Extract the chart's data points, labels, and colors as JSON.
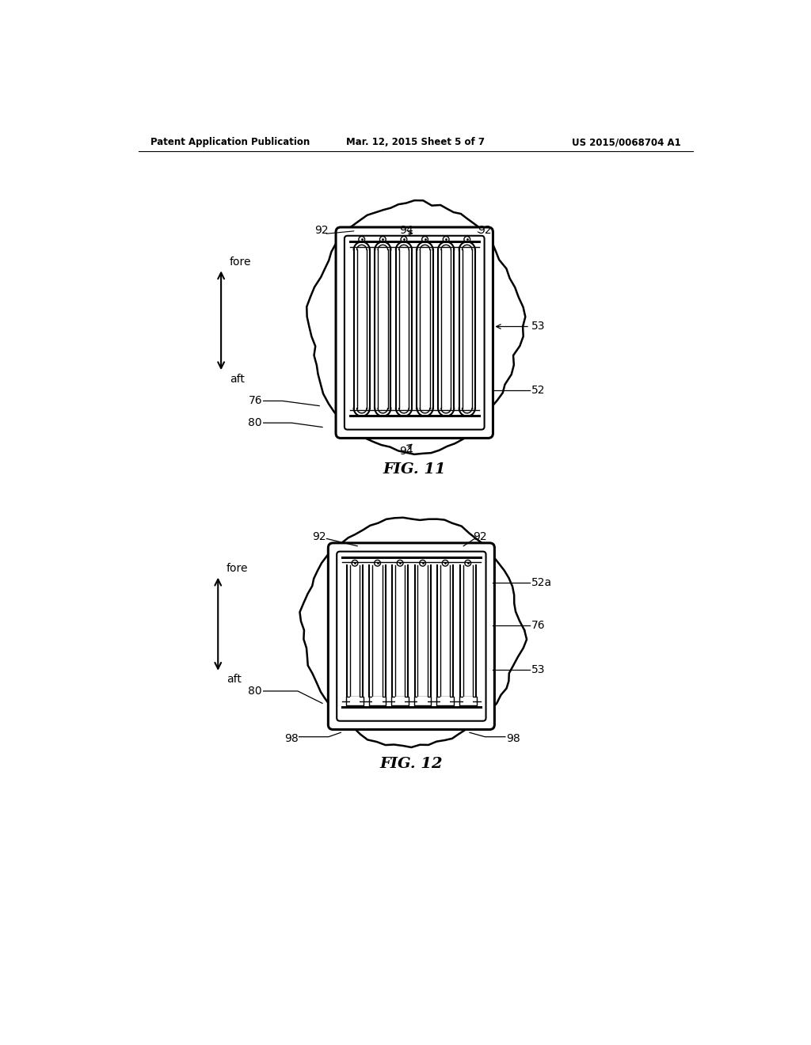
{
  "header_left": "Patent Application Publication",
  "header_mid": "Mar. 12, 2015 Sheet 5 of 7",
  "header_right": "US 2015/0068704 A1",
  "fig11_title": "FIG. 11",
  "fig12_title": "FIG. 12",
  "bg_color": "#ffffff",
  "line_color": "#000000"
}
